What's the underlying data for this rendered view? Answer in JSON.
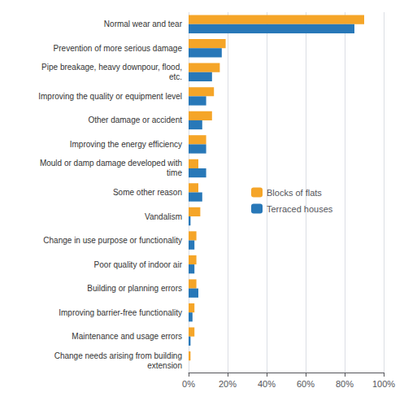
{
  "chart_data": {
    "type": "bar",
    "orientation": "horizontal",
    "categories": [
      "Normal wear and tear",
      "Prevention of more serious damage",
      "Pipe breakage, heavy downpour, flood,\netc.",
      "Improving the quality or equipment level",
      "Other damage or accident",
      "Improving the energy efficiency",
      "Mould or damp damage developed with\ntime",
      "Some other reason",
      "Vandalism",
      "Change in use purpose or functionality",
      "Poor quality of indoor air",
      "Building or planning errors",
      "Improving barrier-free functionality",
      "Maintenance and usage errors",
      "Change needs arising from building\nextension"
    ],
    "series": [
      {
        "name": "Blocks of flats",
        "color": "#f5a528",
        "values": [
          90,
          19,
          16,
          13,
          12,
          9,
          5,
          5,
          6,
          4,
          4,
          4,
          3,
          3,
          1
        ]
      },
      {
        "name": "Terraced houses",
        "color": "#2878b8",
        "values": [
          85,
          17,
          12,
          9,
          7,
          9,
          9,
          7,
          1,
          3,
          3,
          5,
          2,
          1,
          0
        ]
      }
    ],
    "xlim": [
      0,
      100
    ],
    "xticks": [
      {
        "value": 0,
        "label": "0%"
      },
      {
        "value": 20,
        "label": "20%"
      },
      {
        "value": 40,
        "label": "40%"
      },
      {
        "value": 60,
        "label": "60%"
      },
      {
        "value": 80,
        "label": "80%"
      },
      {
        "value": 100,
        "label": "100%"
      }
    ],
    "grid": true,
    "legend": "center"
  }
}
